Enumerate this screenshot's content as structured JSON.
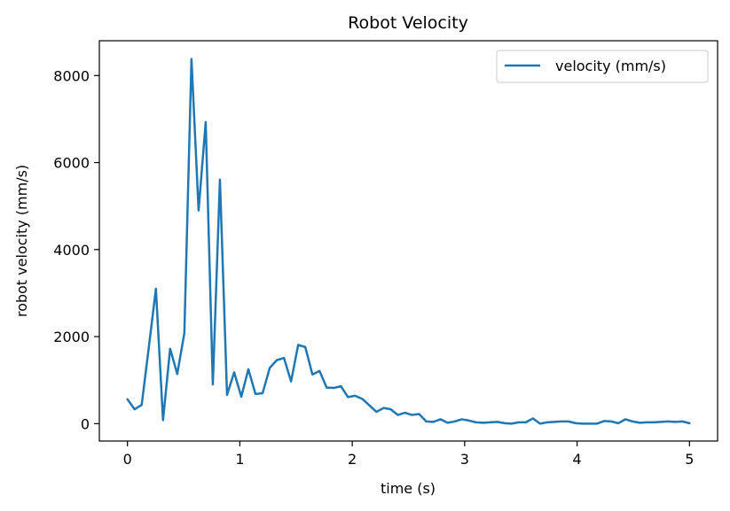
{
  "chart_data": {
    "type": "line",
    "title": "Robot Velocity",
    "xlabel": "time (s)",
    "ylabel": "robot velocity (mm/s)",
    "xlim": [
      -0.25,
      5.25
    ],
    "ylim": [
      -400,
      8800
    ],
    "xticks": [
      0,
      1,
      2,
      3,
      4,
      5
    ],
    "yticks": [
      0,
      2000,
      4000,
      6000,
      8000
    ],
    "grid": false,
    "legend_position": "top-right",
    "series": [
      {
        "name": "velocity (mm/s)",
        "color": "#1f77b4",
        "x": [
          0.0,
          0.0633,
          0.1266,
          0.1899,
          0.2532,
          0.3165,
          0.3797,
          0.443,
          0.5063,
          0.5696,
          0.6329,
          0.6962,
          0.7595,
          0.8228,
          0.8861,
          0.9494,
          1.0127,
          1.0759,
          1.1392,
          1.2025,
          1.2658,
          1.3291,
          1.3924,
          1.4557,
          1.519,
          1.5823,
          1.6456,
          1.7089,
          1.7722,
          1.8354,
          1.8987,
          1.962,
          2.0253,
          2.0886,
          2.1519,
          2.2152,
          2.2785,
          2.3418,
          2.4051,
          2.4684,
          2.5316,
          2.5949,
          2.6582,
          2.7215,
          2.7848,
          2.8481,
          2.9114,
          2.9747,
          3.038,
          3.1013,
          3.1646,
          3.2278,
          3.2911,
          3.3544,
          3.4177,
          3.481,
          3.5443,
          3.6076,
          3.6709,
          3.7342,
          3.7975,
          3.8608,
          3.9241,
          3.9873,
          4.0506,
          4.1139,
          4.1772,
          4.2405,
          4.3038,
          4.3671,
          4.4304,
          4.4937,
          4.557,
          4.6203,
          4.6835,
          4.7468,
          4.8101,
          4.8734,
          4.9367,
          5.0
        ],
        "y": [
          560,
          330,
          430,
          1750,
          3100,
          80,
          1720,
          1140,
          2080,
          8380,
          4900,
          6930,
          900,
          5610,
          660,
          1180,
          620,
          1250,
          680,
          700,
          1280,
          1460,
          1510,
          970,
          1810,
          1760,
          1130,
          1210,
          830,
          820,
          860,
          610,
          640,
          570,
          420,
          270,
          360,
          330,
          200,
          250,
          200,
          220,
          50,
          40,
          100,
          20,
          50,
          100,
          70,
          30,
          20,
          30,
          40,
          10,
          0,
          30,
          30,
          120,
          0,
          30,
          40,
          50,
          50,
          10,
          0,
          0,
          0,
          60,
          50,
          10,
          100,
          50,
          20,
          30,
          30,
          40,
          50,
          40,
          50,
          10
        ]
      }
    ]
  }
}
